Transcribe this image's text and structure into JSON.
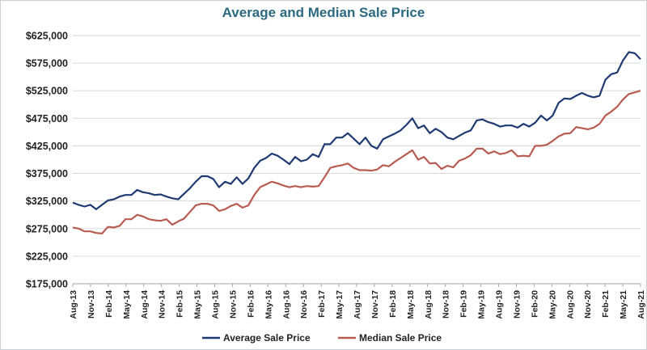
{
  "chart_data": {
    "type": "line",
    "title": "Average and Median Sale Price",
    "xlabel": "",
    "ylabel": "",
    "ylim": [
      175000,
      625000
    ],
    "yticks": [
      175000,
      225000,
      275000,
      325000,
      375000,
      425000,
      475000,
      525000,
      575000,
      625000
    ],
    "ytick_labels": [
      "$175,000",
      "$225,000",
      "$275,000",
      "$325,000",
      "$375,000",
      "$425,000",
      "$475,000",
      "$525,000",
      "$575,000",
      "$625,000"
    ],
    "xtick_labels": [
      "Aug-13",
      "Nov-13",
      "Feb-14",
      "May-14",
      "Aug-14",
      "Nov-14",
      "Feb-15",
      "May-15",
      "Aug-15",
      "Nov-15",
      "Feb-16",
      "May-16",
      "Aug-16",
      "Nov-16",
      "Feb-17",
      "May-17",
      "Aug-17",
      "Nov-17",
      "Feb-18",
      "May-18",
      "Aug-18",
      "Nov-18",
      "Feb-19",
      "May-19",
      "Aug-19",
      "Nov-19",
      "Feb-20",
      "May-20",
      "Aug-20",
      "Nov-20",
      "Feb-21",
      "May-21",
      "Aug-21"
    ],
    "grid": true,
    "legend_position": "bottom",
    "series": [
      {
        "name": "Average Sale Price",
        "color": "#1f3a73",
        "values": [
          322000,
          318000,
          315000,
          318000,
          310000,
          318000,
          326000,
          328000,
          333000,
          336000,
          336000,
          345000,
          341000,
          339000,
          336000,
          337000,
          333000,
          330000,
          328000,
          338000,
          348000,
          360000,
          370000,
          370000,
          365000,
          350000,
          360000,
          356000,
          368000,
          356000,
          366000,
          385000,
          398000,
          403000,
          411000,
          407000,
          400000,
          392000,
          405000,
          397000,
          400000,
          410000,
          405000,
          428000,
          428000,
          440000,
          440000,
          448000,
          438000,
          428000,
          440000,
          425000,
          420000,
          437000,
          442000,
          447000,
          453000,
          463000,
          475000,
          457000,
          462000,
          448000,
          456000,
          450000,
          440000,
          437000,
          443000,
          449000,
          453000,
          471000,
          473000,
          468000,
          465000,
          460000,
          462000,
          462000,
          458000,
          465000,
          460000,
          467000,
          480000,
          471000,
          480000,
          503000,
          511000,
          510000,
          516000,
          521000,
          516000,
          513000,
          516000,
          545000,
          555000,
          558000,
          580000,
          595000,
          593000,
          582000
        ]
      },
      {
        "name": "Median Sale Price",
        "color": "#b85c52",
        "values": [
          277000,
          275000,
          270000,
          270000,
          267000,
          266000,
          278000,
          277000,
          280000,
          292000,
          292000,
          300000,
          297000,
          292000,
          290000,
          289000,
          292000,
          282000,
          288000,
          293000,
          305000,
          317000,
          320000,
          320000,
          317000,
          307000,
          310000,
          316000,
          320000,
          313000,
          317000,
          336000,
          350000,
          355000,
          360000,
          357000,
          353000,
          350000,
          352000,
          350000,
          352000,
          351000,
          352000,
          368000,
          385000,
          388000,
          390000,
          393000,
          385000,
          381000,
          381000,
          380000,
          382000,
          390000,
          388000,
          396000,
          403000,
          410000,
          417000,
          400000,
          405000,
          393000,
          394000,
          383000,
          389000,
          386000,
          398000,
          402000,
          408000,
          420000,
          420000,
          411000,
          415000,
          410000,
          412000,
          417000,
          406000,
          407000,
          406000,
          425000,
          425000,
          427000,
          434000,
          442000,
          447000,
          448000,
          459000,
          457000,
          455000,
          458000,
          465000,
          480000,
          487000,
          496000,
          509000,
          519000,
          522000,
          525000
        ]
      }
    ]
  }
}
